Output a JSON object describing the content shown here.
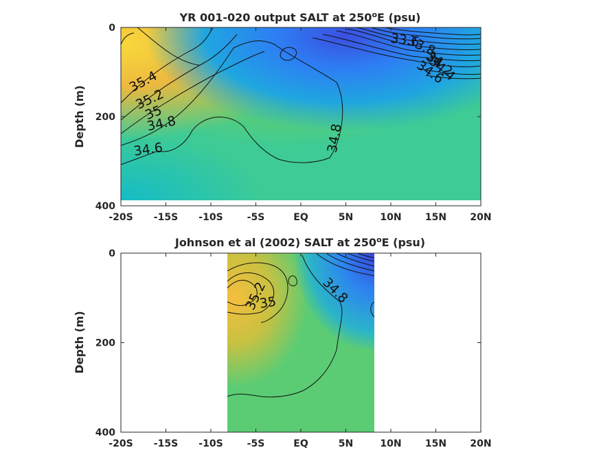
{
  "chart_data": [
    {
      "type": "heatmap",
      "title": "YR 001-020 output SALT at 250",
      "title_superscript": "o",
      "title_suffix": "E (psu)",
      "ylabel": "Depth (m)",
      "xlabel": "",
      "x_ticks": [
        -20,
        -15,
        -10,
        -5,
        0,
        5,
        10,
        15,
        20
      ],
      "x_tick_labels": [
        "-20S",
        "-15S",
        "-10S",
        "-5S",
        "EQ",
        "5N",
        "10N",
        "15N",
        "20N"
      ],
      "y_ticks": [
        0,
        200,
        400
      ],
      "y_tick_labels": [
        "0",
        "200",
        "400"
      ],
      "xlim": [
        -20,
        20
      ],
      "ylim": [
        400,
        0
      ],
      "data_extent": {
        "lat": [
          -20,
          20
        ],
        "depth": [
          0,
          385
        ]
      },
      "colormap": "parula",
      "contour_labels": [
        {
          "text": "35.4",
          "lat": -17.3,
          "depth": 130,
          "angle": -28
        },
        {
          "text": "35.2",
          "lat": -16.6,
          "depth": 170,
          "angle": -25
        },
        {
          "text": "35",
          "lat": -16.2,
          "depth": 200,
          "angle": -22
        },
        {
          "text": "34.8",
          "lat": -15.4,
          "depth": 225,
          "angle": -12
        },
        {
          "text": "34.6",
          "lat": -16.9,
          "depth": 283,
          "angle": -8
        },
        {
          "text": "34.8",
          "lat": 4.2,
          "depth": 250,
          "angle": -80
        },
        {
          "text": "33.6",
          "lat": 11.5,
          "depth": 38,
          "angle": 8
        },
        {
          "text": "33.8",
          "lat": 13.2,
          "depth": 50,
          "angle": 25
        },
        {
          "text": "34",
          "lat": 14.6,
          "depth": 78,
          "angle": 35
        },
        {
          "text": "34.2",
          "lat": 15.1,
          "depth": 90,
          "angle": 38
        },
        {
          "text": "34.4",
          "lat": 15.4,
          "depth": 100,
          "angle": 40
        },
        {
          "text": "34.6",
          "lat": 14.1,
          "depth": 108,
          "angle": 35
        }
      ]
    },
    {
      "type": "heatmap",
      "title": "Johnson et al (2002) SALT at 250",
      "title_superscript": "o",
      "title_suffix": "E (psu)",
      "ylabel": "Depth (m)",
      "xlabel": "",
      "x_ticks": [
        -20,
        -15,
        -10,
        -5,
        0,
        5,
        10,
        15,
        20
      ],
      "x_tick_labels": [
        "-20S",
        "-15S",
        "-10S",
        "-5S",
        "EQ",
        "5N",
        "10N",
        "15N",
        "20N"
      ],
      "y_ticks": [
        0,
        200,
        400
      ],
      "y_tick_labels": [
        "0",
        "200",
        "400"
      ],
      "xlim": [
        -20,
        20
      ],
      "ylim": [
        400,
        0
      ],
      "data_extent": {
        "lat": [
          -8,
          8.3
        ],
        "depth": [
          0,
          400
        ]
      },
      "colormap": "parula",
      "contour_labels": [
        {
          "text": "35.2",
          "lat": -4.6,
          "depth": 100,
          "angle": -65
        },
        {
          "text": "35",
          "lat": -3.6,
          "depth": 120,
          "angle": -8
        },
        {
          "text": "34.8",
          "lat": 3.5,
          "depth": 90,
          "angle": 45
        }
      ]
    }
  ]
}
